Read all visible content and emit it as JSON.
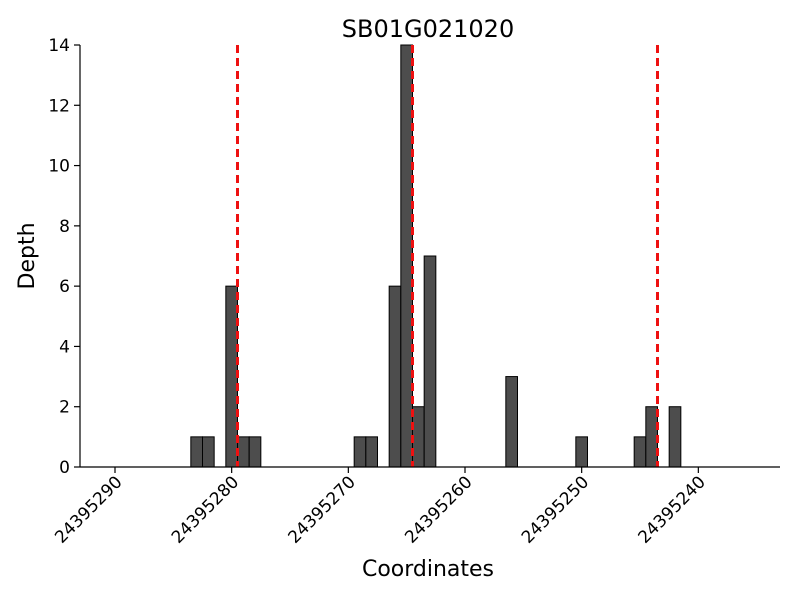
{
  "chart_data": {
    "type": "bar",
    "title": "SB01G021020",
    "xlabel": "Coordinates",
    "ylabel": "Depth",
    "x_reversed": true,
    "xlim": [
      24395293,
      24395233
    ],
    "ylim": [
      0,
      14
    ],
    "x_ticks": [
      24395290,
      24395280,
      24395270,
      24395260,
      24395250,
      24395240
    ],
    "y_ticks": [
      0,
      2,
      4,
      6,
      8,
      10,
      12,
      14
    ],
    "x": [
      24395283,
      24395282,
      24395280,
      24395279,
      24395278,
      24395269,
      24395268,
      24395266,
      24395265,
      24395264,
      24395263,
      24395256,
      24395250,
      24395245,
      24395244,
      24395242
    ],
    "values": [
      1,
      1,
      6,
      1,
      1,
      1,
      1,
      6,
      14,
      2,
      7,
      3,
      1,
      1,
      2,
      2
    ],
    "reference_lines": [
      24395279.5,
      24395264.5,
      24395243.5
    ],
    "colors": {
      "bar": "#4d4d4d",
      "reference_line": "#ee1111"
    },
    "grid": false,
    "legend": "none"
  }
}
